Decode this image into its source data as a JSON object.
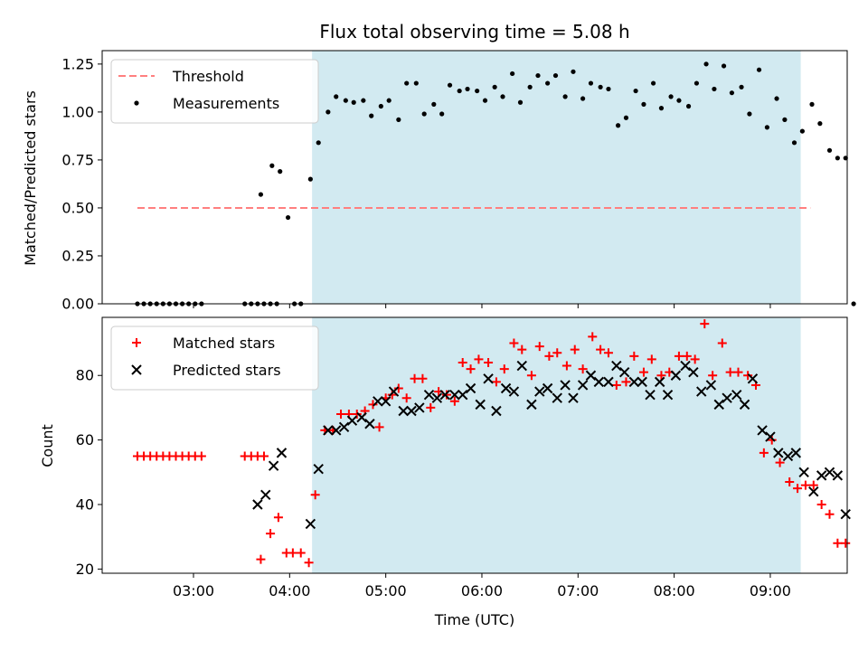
{
  "chart_data": [
    {
      "type": "scatter",
      "title": "Flux total observing time = 5.08 h",
      "ylabel": "Matched/Predicted stars",
      "xlabel": "",
      "xlim": [
        "02:03",
        "09:48"
      ],
      "ylim": [
        0,
        1.32
      ],
      "yticks": [
        "0.00",
        "0.25",
        "0.50",
        "0.75",
        "1.00",
        "1.25"
      ],
      "grid": false,
      "legend_position": "top-left",
      "shaded_span": {
        "start": "04:14",
        "end": "09:19",
        "color": "#add8e6"
      },
      "threshold": {
        "name": "Threshold",
        "value": 0.5,
        "x_start": "02:25",
        "x_end": "09:25",
        "color": "#ff7f7f",
        "style": "dashed"
      },
      "series": [
        {
          "name": "Measurements",
          "color": "#000000",
          "marker": "dot",
          "points": [
            [
              "02:25",
              0
            ],
            [
              "02:29",
              0
            ],
            [
              "02:33",
              0
            ],
            [
              "02:37",
              0
            ],
            [
              "02:41",
              0
            ],
            [
              "02:45",
              0
            ],
            [
              "02:49",
              0
            ],
            [
              "02:53",
              0
            ],
            [
              "02:57",
              0
            ],
            [
              "03:01",
              0
            ],
            [
              "03:05",
              0
            ],
            [
              "03:32",
              0
            ],
            [
              "03:36",
              0
            ],
            [
              "03:40",
              0
            ],
            [
              "03:44",
              0
            ],
            [
              "03:48",
              0
            ],
            [
              "03:52",
              0
            ],
            [
              "03:42",
              0.57
            ],
            [
              "03:49",
              0.72
            ],
            [
              "03:54",
              0.69
            ],
            [
              "03:59",
              0.45
            ],
            [
              "04:03",
              0
            ],
            [
              "04:07",
              0
            ],
            [
              "04:13",
              0.65
            ],
            [
              "04:18",
              0.84
            ],
            [
              "04:24",
              1.0
            ],
            [
              "04:29",
              1.08
            ],
            [
              "04:35",
              1.06
            ],
            [
              "04:40",
              1.05
            ],
            [
              "04:46",
              1.06
            ],
            [
              "04:51",
              0.98
            ],
            [
              "04:57",
              1.03
            ],
            [
              "05:02",
              1.06
            ],
            [
              "05:08",
              0.96
            ],
            [
              "05:13",
              1.15
            ],
            [
              "05:19",
              1.15
            ],
            [
              "05:24",
              0.99
            ],
            [
              "05:30",
              1.04
            ],
            [
              "05:35",
              0.99
            ],
            [
              "05:40",
              1.14
            ],
            [
              "05:46",
              1.11
            ],
            [
              "05:51",
              1.12
            ],
            [
              "05:57",
              1.11
            ],
            [
              "06:02",
              1.06
            ],
            [
              "06:08",
              1.13
            ],
            [
              "06:13",
              1.08
            ],
            [
              "06:19",
              1.2
            ],
            [
              "06:24",
              1.05
            ],
            [
              "06:30",
              1.13
            ],
            [
              "06:35",
              1.19
            ],
            [
              "06:41",
              1.15
            ],
            [
              "06:46",
              1.19
            ],
            [
              "06:52",
              1.08
            ],
            [
              "06:57",
              1.21
            ],
            [
              "07:03",
              1.07
            ],
            [
              "07:08",
              1.15
            ],
            [
              "07:14",
              1.13
            ],
            [
              "07:19",
              1.12
            ],
            [
              "07:25",
              0.93
            ],
            [
              "07:30",
              0.97
            ],
            [
              "07:36",
              1.11
            ],
            [
              "07:41",
              1.04
            ],
            [
              "07:47",
              1.15
            ],
            [
              "07:52",
              1.02
            ],
            [
              "07:58",
              1.08
            ],
            [
              "08:03",
              1.06
            ],
            [
              "08:09",
              1.03
            ],
            [
              "08:14",
              1.15
            ],
            [
              "08:20",
              1.25
            ],
            [
              "08:25",
              1.12
            ],
            [
              "08:31",
              1.24
            ],
            [
              "08:36",
              1.1
            ],
            [
              "08:42",
              1.13
            ],
            [
              "08:47",
              0.99
            ],
            [
              "08:53",
              1.22
            ],
            [
              "08:58",
              0.92
            ],
            [
              "09:04",
              1.07
            ],
            [
              "09:09",
              0.96
            ],
            [
              "09:15",
              0.84
            ],
            [
              "09:20",
              0.9
            ],
            [
              "09:26",
              1.04
            ],
            [
              "09:31",
              0.94
            ],
            [
              "09:37",
              0.8
            ],
            [
              "09:42",
              0.76
            ],
            [
              "09:47",
              0.76
            ],
            [
              "09:52",
              0
            ]
          ]
        }
      ]
    },
    {
      "type": "scatter",
      "title": "",
      "ylabel": "Count",
      "xlabel": "Time (UTC)",
      "xlim": [
        "02:03",
        "09:48"
      ],
      "ylim": [
        18.7,
        98
      ],
      "xticks": [
        "03:00",
        "04:00",
        "05:00",
        "06:00",
        "07:00",
        "08:00",
        "09:00"
      ],
      "yticks": [
        "20",
        "40",
        "60",
        "80"
      ],
      "grid": false,
      "legend_position": "top-left",
      "shaded_span": {
        "start": "04:14",
        "end": "09:19",
        "color": "#add8e6"
      },
      "series": [
        {
          "name": "Matched stars",
          "color": "#ff0000",
          "marker": "plus",
          "points": [
            [
              "02:25",
              55
            ],
            [
              "02:29",
              55
            ],
            [
              "02:33",
              55
            ],
            [
              "02:37",
              55
            ],
            [
              "02:41",
              55
            ],
            [
              "02:45",
              55
            ],
            [
              "02:49",
              55
            ],
            [
              "02:53",
              55
            ],
            [
              "02:57",
              55
            ],
            [
              "03:01",
              55
            ],
            [
              "03:05",
              55
            ],
            [
              "03:32",
              55
            ],
            [
              "03:36",
              55
            ],
            [
              "03:40",
              55
            ],
            [
              "03:44",
              55
            ],
            [
              "03:42",
              23
            ],
            [
              "03:48",
              31
            ],
            [
              "03:53",
              36
            ],
            [
              "03:58",
              25
            ],
            [
              "04:02",
              25
            ],
            [
              "04:07",
              25
            ],
            [
              "04:12",
              22
            ],
            [
              "04:16",
              43
            ],
            [
              "04:22",
              63
            ],
            [
              "04:27",
              63
            ],
            [
              "04:32",
              68
            ],
            [
              "04:37",
              68
            ],
            [
              "04:42",
              68
            ],
            [
              "04:47",
              69
            ],
            [
              "04:52",
              71
            ],
            [
              "04:56",
              64
            ],
            [
              "05:00",
              73
            ],
            [
              "05:04",
              74
            ],
            [
              "05:08",
              76
            ],
            [
              "05:13",
              73
            ],
            [
              "05:18",
              79
            ],
            [
              "05:23",
              79
            ],
            [
              "05:28",
              70
            ],
            [
              "05:33",
              75
            ],
            [
              "05:38",
              74
            ],
            [
              "05:43",
              72
            ],
            [
              "05:48",
              84
            ],
            [
              "05:53",
              82
            ],
            [
              "05:58",
              85
            ],
            [
              "06:04",
              84
            ],
            [
              "06:09",
              78
            ],
            [
              "06:14",
              82
            ],
            [
              "06:20",
              90
            ],
            [
              "06:25",
              88
            ],
            [
              "06:31",
              80
            ],
            [
              "06:36",
              89
            ],
            [
              "06:42",
              86
            ],
            [
              "06:47",
              87
            ],
            [
              "06:53",
              83
            ],
            [
              "06:58",
              88
            ],
            [
              "07:03",
              82
            ],
            [
              "07:09",
              92
            ],
            [
              "07:14",
              88
            ],
            [
              "07:19",
              87
            ],
            [
              "07:24",
              77
            ],
            [
              "07:30",
              78
            ],
            [
              "07:35",
              86
            ],
            [
              "07:41",
              81
            ],
            [
              "07:46",
              85
            ],
            [
              "07:52",
              80
            ],
            [
              "07:57",
              81
            ],
            [
              "08:03",
              86
            ],
            [
              "08:08",
              86
            ],
            [
              "08:13",
              85
            ],
            [
              "08:19",
              96
            ],
            [
              "08:24",
              80
            ],
            [
              "08:30",
              90
            ],
            [
              "08:35",
              81
            ],
            [
              "08:40",
              81
            ],
            [
              "08:46",
              80
            ],
            [
              "08:51",
              77
            ],
            [
              "08:56",
              56
            ],
            [
              "09:01",
              60
            ],
            [
              "09:06",
              53
            ],
            [
              "09:12",
              47
            ],
            [
              "09:17",
              45
            ],
            [
              "09:22",
              46
            ],
            [
              "09:27",
              46
            ],
            [
              "09:32",
              40
            ],
            [
              "09:37",
              37
            ],
            [
              "09:42",
              28
            ],
            [
              "09:47",
              28
            ]
          ]
        },
        {
          "name": "Predicted stars",
          "color": "#000000",
          "marker": "cross",
          "points": [
            [
              "03:40",
              40
            ],
            [
              "03:45",
              43
            ],
            [
              "03:50",
              52
            ],
            [
              "03:55",
              56
            ],
            [
              "04:13",
              34
            ],
            [
              "04:18",
              51
            ],
            [
              "04:24",
              63
            ],
            [
              "04:29",
              63
            ],
            [
              "04:34",
              64
            ],
            [
              "04:39",
              66
            ],
            [
              "04:45",
              67
            ],
            [
              "04:50",
              65
            ],
            [
              "04:55",
              72
            ],
            [
              "05:00",
              72
            ],
            [
              "05:05",
              75
            ],
            [
              "05:11",
              69
            ],
            [
              "05:16",
              69
            ],
            [
              "05:21",
              70
            ],
            [
              "05:27",
              74
            ],
            [
              "05:32",
              73
            ],
            [
              "05:37",
              74
            ],
            [
              "05:43",
              74
            ],
            [
              "05:48",
              74
            ],
            [
              "05:53",
              76
            ],
            [
              "05:59",
              71
            ],
            [
              "06:04",
              79
            ],
            [
              "06:09",
              69
            ],
            [
              "06:15",
              76
            ],
            [
              "06:20",
              75
            ],
            [
              "06:25",
              83
            ],
            [
              "06:31",
              71
            ],
            [
              "06:36",
              75
            ],
            [
              "06:41",
              76
            ],
            [
              "06:47",
              73
            ],
            [
              "06:52",
              77
            ],
            [
              "06:57",
              73
            ],
            [
              "07:03",
              77
            ],
            [
              "07:08",
              80
            ],
            [
              "07:13",
              78
            ],
            [
              "07:19",
              78
            ],
            [
              "07:24",
              83
            ],
            [
              "07:29",
              81
            ],
            [
              "07:35",
              78
            ],
            [
              "07:40",
              78
            ],
            [
              "07:45",
              74
            ],
            [
              "07:51",
              78
            ],
            [
              "07:56",
              74
            ],
            [
              "08:01",
              80
            ],
            [
              "08:07",
              83
            ],
            [
              "08:12",
              81
            ],
            [
              "08:17",
              75
            ],
            [
              "08:23",
              77
            ],
            [
              "08:28",
              71
            ],
            [
              "08:33",
              73
            ],
            [
              "08:39",
              74
            ],
            [
              "08:44",
              71
            ],
            [
              "08:49",
              79
            ],
            [
              "08:55",
              63
            ],
            [
              "09:00",
              61
            ],
            [
              "09:05",
              56
            ],
            [
              "09:11",
              55
            ],
            [
              "09:16",
              56
            ],
            [
              "09:21",
              50
            ],
            [
              "09:27",
              44
            ],
            [
              "09:32",
              49
            ],
            [
              "09:37",
              50
            ],
            [
              "09:42",
              49
            ],
            [
              "09:47",
              37
            ]
          ]
        }
      ]
    }
  ]
}
